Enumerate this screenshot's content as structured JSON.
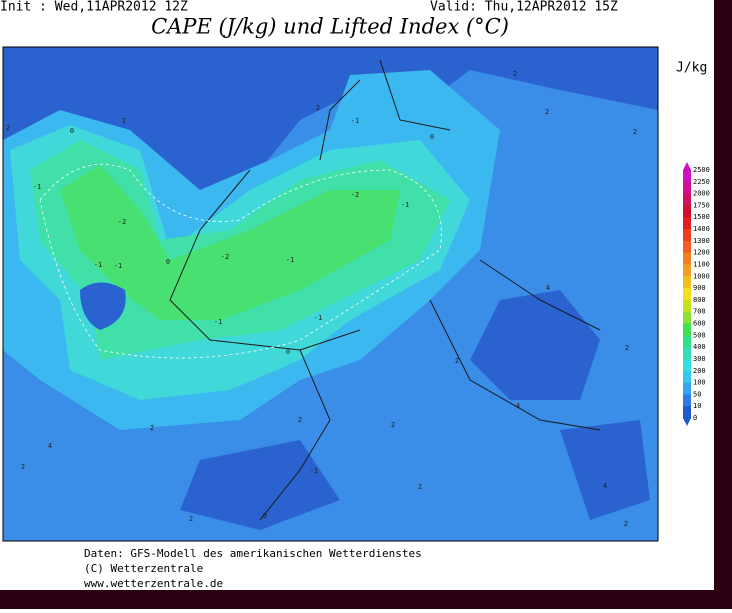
{
  "header": {
    "init": "Init : Wed,11APR2012 12Z",
    "valid": "Valid: Thu,12APR2012 15Z",
    "title": "CAPE (J/kg) und Lifted Index (°C)"
  },
  "colorbar": {
    "unit": "J/kg",
    "levels": [
      2500,
      2250,
      2000,
      1750,
      1500,
      1400,
      1300,
      1200,
      1100,
      1000,
      900,
      800,
      700,
      600,
      500,
      400,
      300,
      200,
      100,
      50,
      10,
      0
    ],
    "colors": [
      "#d010c0",
      "#d01090",
      "#d01060",
      "#d01030",
      "#e02020",
      "#e84020",
      "#f06020",
      "#f08020",
      "#f0a020",
      "#f0c020",
      "#f0e020",
      "#c8e020",
      "#90e030",
      "#40e050",
      "#30e080",
      "#30e0b0",
      "#30e0e0",
      "#35c8f0",
      "#35a5f0",
      "#2e7de6",
      "#1e5ad2"
    ]
  },
  "map": {
    "contour_labels": [
      "0",
      "-1",
      "-2",
      "-1",
      "-1",
      "0",
      "-2",
      "-1",
      "-1",
      "-2",
      "-1",
      "-1",
      "0",
      "-1",
      "0",
      "2",
      "2",
      "2",
      "2",
      "2",
      "2",
      "4",
      "2",
      "4",
      "2",
      "2",
      "2",
      "2",
      "4",
      "2",
      "-1",
      "0",
      "2",
      "4",
      "2",
      "2"
    ]
  },
  "footer": {
    "lines": [
      "Daten: GFS-Modell des amerikanischen Wetterdienstes",
      "(C) Wetterzentrale",
      "www.wetterzentrale.de"
    ]
  }
}
